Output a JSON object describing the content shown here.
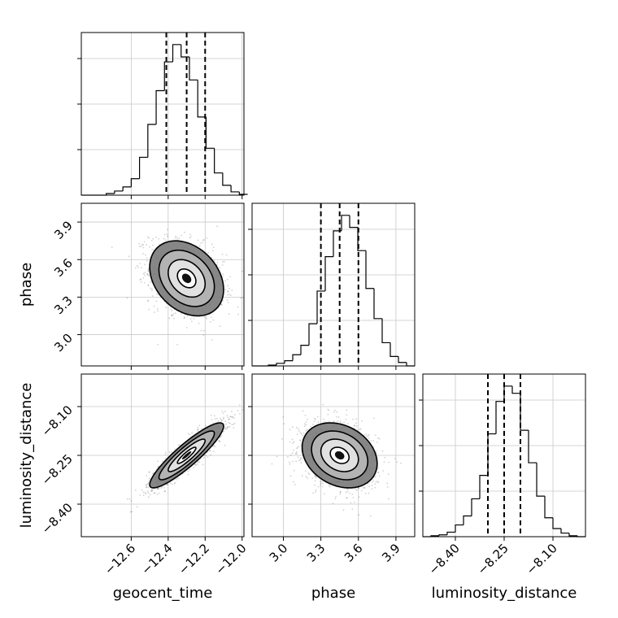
{
  "chart_data": {
    "type": "corner",
    "parameters": [
      {
        "name": "geocent_time",
        "label": "geocent_time",
        "range": [
          -12.87,
          -11.99
        ],
        "ticks": [
          -12.6,
          -12.4,
          -12.2,
          -12.0
        ],
        "tick_labels": [
          "−12.6",
          "−12.4",
          "−12.2",
          "−12.0"
        ],
        "quantiles": [
          -12.41,
          -12.3,
          -12.2
        ],
        "histogram": {
          "bin_edges": [
            -12.87,
            -12.825,
            -12.78,
            -12.735,
            -12.69,
            -12.645,
            -12.6,
            -12.555,
            -12.51,
            -12.465,
            -12.42,
            -12.375,
            -12.33,
            -12.285,
            -12.24,
            -12.195,
            -12.15,
            -12.105,
            -12.06,
            -12.015,
            -11.97
          ],
          "counts": [
            0,
            0,
            0,
            2,
            5,
            10,
            20,
            46,
            86,
            127,
            162,
            183,
            168,
            140,
            95,
            57,
            27,
            12,
            4,
            1
          ]
        }
      },
      {
        "name": "phase",
        "label": "phase",
        "range": [
          2.75,
          4.05
        ],
        "ticks": [
          3.0,
          3.3,
          3.6,
          3.9
        ],
        "tick_labels": [
          "3.0",
          "3.3",
          "3.6",
          "3.9"
        ],
        "quantiles": [
          3.3,
          3.45,
          3.6
        ],
        "histogram": {
          "bin_edges": [
            2.75,
            2.815,
            2.88,
            2.945,
            3.01,
            3.075,
            3.14,
            3.205,
            3.27,
            3.335,
            3.4,
            3.465,
            3.53,
            3.595,
            3.66,
            3.725,
            3.79,
            3.855,
            3.92,
            3.985,
            4.05
          ],
          "counts": [
            0,
            0,
            1,
            3,
            6,
            13,
            24,
            49,
            87,
            127,
            157,
            175,
            161,
            134,
            90,
            55,
            27,
            11,
            4,
            0
          ]
        }
      },
      {
        "name": "luminosity_distance",
        "label": "luminosity_distance",
        "range": [
          -8.5,
          -8.0
        ],
        "ticks": [
          -8.4,
          -8.25,
          -8.1
        ],
        "tick_labels": [
          "−8.40",
          "−8.25",
          "−8.10"
        ],
        "quantiles": [
          -8.3,
          -8.25,
          -8.2
        ],
        "histogram": {
          "bin_edges": [
            -8.5,
            -8.475,
            -8.45,
            -8.425,
            -8.4,
            -8.375,
            -8.35,
            -8.325,
            -8.3,
            -8.275,
            -8.25,
            -8.225,
            -8.2,
            -8.175,
            -8.15,
            -8.125,
            -8.1,
            -8.075,
            -8.05,
            -8.025,
            -8.0
          ],
          "counts": [
            0,
            1,
            2,
            5,
            13,
            23,
            42,
            68,
            114,
            150,
            167,
            159,
            118,
            82,
            45,
            21,
            9,
            4,
            1,
            0
          ]
        }
      }
    ],
    "pairs": [
      {
        "x": "geocent_time",
        "y": "phase",
        "mean": [
          -12.3,
          3.45
        ],
        "sd": [
          0.1,
          0.15
        ],
        "correlation": -0.3
      },
      {
        "x": "geocent_time",
        "y": "luminosity_distance",
        "mean": [
          -12.3,
          -8.25
        ],
        "sd": [
          0.1,
          0.05
        ],
        "correlation": 0.9
      },
      {
        "x": "phase",
        "y": "luminosity_distance",
        "mean": [
          3.45,
          -8.25
        ],
        "sd": [
          0.15,
          0.05
        ],
        "correlation": -0.25
      }
    ],
    "contour_levels_sigma": [
      0.5,
      1.0,
      1.5,
      2.0
    ],
    "grid": true
  }
}
